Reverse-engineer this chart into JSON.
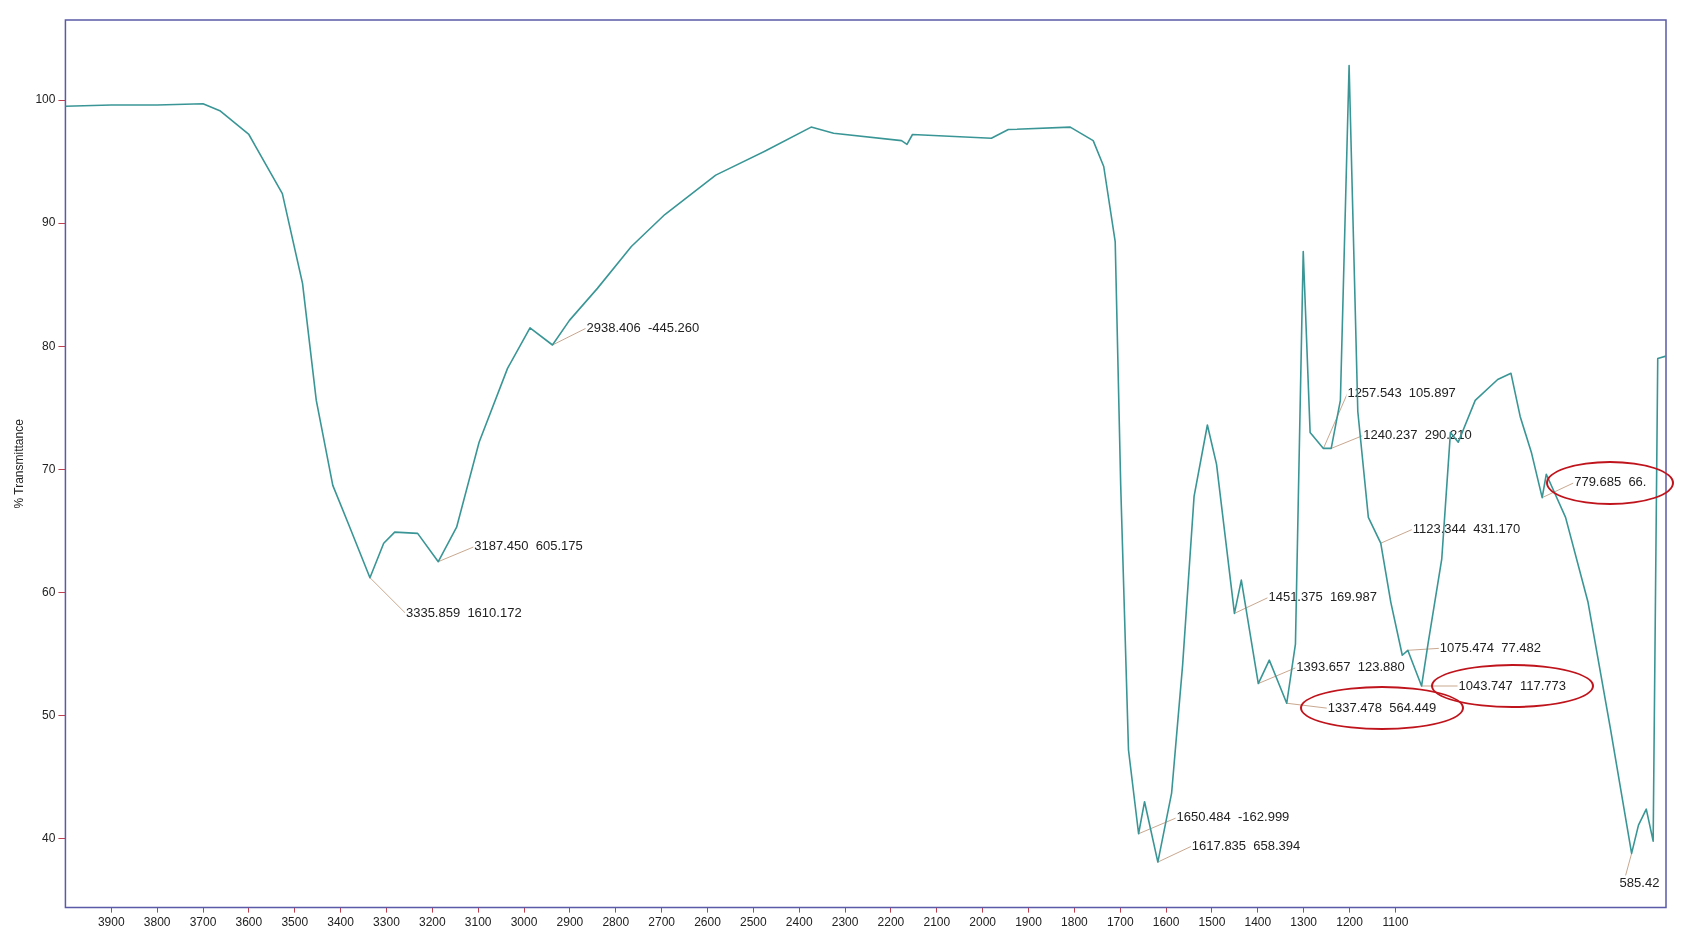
{
  "chart_data": {
    "type": "line",
    "ylabel": "% Transmittance",
    "xlim": [
      4000,
      510
    ],
    "ylim": [
      34.4,
      106.5
    ],
    "xticks": [
      3900,
      3800,
      3700,
      3600,
      3500,
      3400,
      3300,
      3200,
      3100,
      3000,
      2900,
      2800,
      2700,
      2600,
      2500,
      2400,
      2300,
      2200,
      2100,
      2000,
      1900,
      1800,
      1700,
      1600,
      1500,
      1400,
      1300,
      1200,
      1100
    ],
    "yticks": [
      40,
      50,
      60,
      70,
      80,
      90,
      100
    ],
    "grid": false,
    "legend": false,
    "marker": "none",
    "line_style": "solid",
    "series": [
      {
        "color": "#3a9696",
        "x": [
          4000,
          3900,
          3800,
          3700,
          3662,
          3600,
          3527,
          3483,
          3453,
          3417,
          3380,
          3336,
          3306,
          3282,
          3232,
          3187,
          3147,
          3098,
          3036,
          2987,
          2938,
          2901,
          2840,
          2766,
          2693,
          2582,
          2472,
          2374,
          2325,
          2177,
          2165,
          2153,
          1981,
          1944,
          1809,
          1759,
          1736,
          1711,
          1699,
          1682,
          1660,
          1647,
          1618,
          1588,
          1564,
          1539,
          1510,
          1490,
          1451,
          1436,
          1399,
          1375,
          1337,
          1318,
          1301,
          1286,
          1257,
          1240,
          1220,
          1201,
          1182,
          1159,
          1132,
          1110,
          1085,
          1073,
          1043,
          1029,
          999,
          980,
          963,
          926,
          877,
          848,
          828,
          803,
          780,
          771,
          729,
          680,
          631,
          585,
          570,
          553,
          538,
          528,
          510
        ],
        "values": [
          99.5,
          99.6,
          99.6,
          99.7,
          99.1,
          97.2,
          92.4,
          85.1,
          75.6,
          68.7,
          65.3,
          61.2,
          64.0,
          64.9,
          64.8,
          62.5,
          65.3,
          72.2,
          78.2,
          81.5,
          80.1,
          82.1,
          84.7,
          88.1,
          90.7,
          93.9,
          95.9,
          97.8,
          97.3,
          96.7,
          96.4,
          97.2,
          96.9,
          97.6,
          97.8,
          96.7,
          94.6,
          88.5,
          68.7,
          47.2,
          40.4,
          43.0,
          38.1,
          43.7,
          54.1,
          67.8,
          73.6,
          70.4,
          58.3,
          61.0,
          52.6,
          54.5,
          51.0,
          55.8,
          87.7,
          73.0,
          71.7,
          71.7,
          75.6,
          102.8,
          74.7,
          66.1,
          64.0,
          59.2,
          54.9,
          55.3,
          52.4,
          55.8,
          62.7,
          73.0,
          72.2,
          75.6,
          77.3,
          77.8,
          74.3,
          71.3,
          67.7,
          69.6,
          66.1,
          59.2,
          48.9,
          38.8,
          41.1,
          42.4,
          39.8,
          79.0,
          79.2
        ]
      }
    ],
    "annotations": [
      {
        "text": "3335.859  1610.172",
        "x": 3336,
        "y": 61.2
      },
      {
        "text": "3187.450  605.175",
        "x": 3187,
        "y": 62.5
      },
      {
        "text": "2938.406  -445.260",
        "x": 2938,
        "y": 80.1
      },
      {
        "text": "1650.484  -162.999",
        "x": 1660,
        "y": 40.4
      },
      {
        "text": "1617.835  658.394",
        "x": 1618,
        "y": 38.1
      },
      {
        "text": "1451.375  169.987",
        "x": 1451,
        "y": 58.3
      },
      {
        "text": "1393.657  123.880",
        "x": 1399,
        "y": 52.6
      },
      {
        "text": "1337.478  564.449",
        "x": 1337,
        "y": 51.0
      },
      {
        "text": "1257.543  105.897",
        "x": 1257,
        "y": 71.7
      },
      {
        "text": "1240.237  290.210",
        "x": 1240,
        "y": 71.7
      },
      {
        "text": "1123.344  431.170",
        "x": 1132,
        "y": 64.0
      },
      {
        "text": "1075.474  77.482",
        "x": 1073,
        "y": 55.3
      },
      {
        "text": "1043.747  117.773",
        "x": 1043,
        "y": 52.4
      },
      {
        "text": "779.685  66.",
        "x": 780,
        "y": 67.7
      },
      {
        "text": "585.42",
        "x": 585,
        "y": 38.8
      }
    ]
  }
}
